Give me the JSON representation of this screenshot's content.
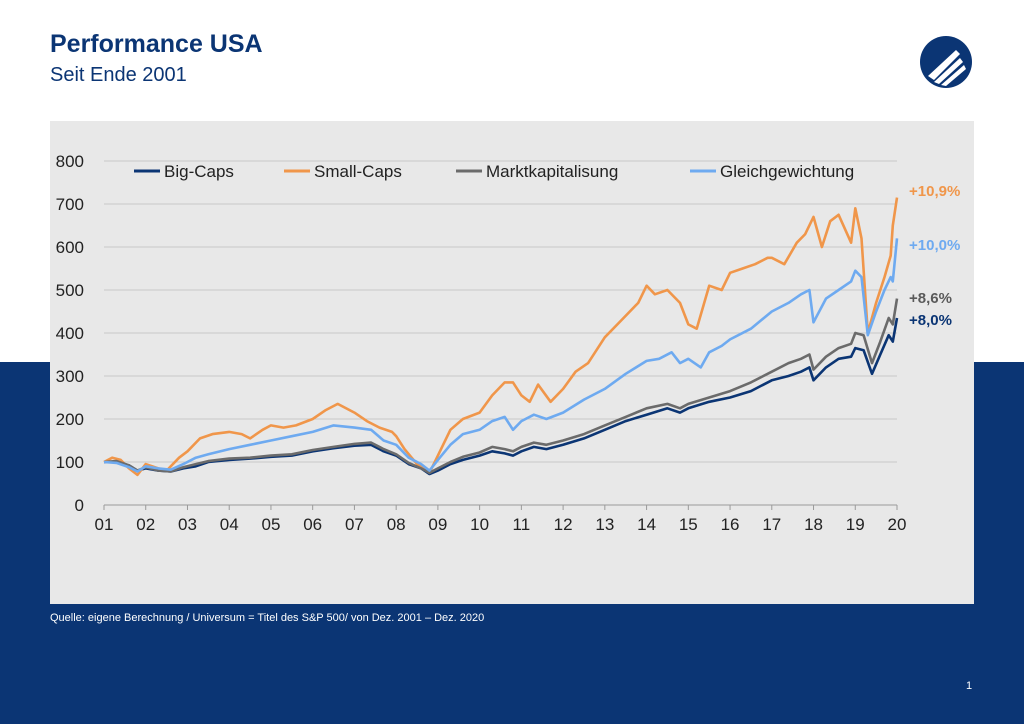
{
  "header": {
    "title": "Performance USA",
    "subtitle": "Seit Ende 2001"
  },
  "footer": {
    "source": "Quelle: eigene Berechnung  / Universum = Titel des S&P 500/ von Dez. 2001 – Dez. 2020",
    "page_number": "1"
  },
  "colors": {
    "brand": "#0b3574",
    "panel": "#e8e8e8"
  },
  "logo": {
    "icon": "brand-logo-icon"
  },
  "chart_data": {
    "type": "line",
    "title": "",
    "xlabel": "",
    "ylabel": "",
    "ylim": [
      0,
      800
    ],
    "xlim": [
      2001,
      2020
    ],
    "grid": true,
    "legend_position": "top",
    "y_ticks": [
      "0",
      "100",
      "200",
      "300",
      "400",
      "500",
      "600",
      "700",
      "800"
    ],
    "x_ticks": [
      "01",
      "02",
      "03",
      "04",
      "05",
      "06",
      "07",
      "08",
      "09",
      "10",
      "11",
      "12",
      "13",
      "14",
      "15",
      "16",
      "17",
      "18",
      "19",
      "20"
    ],
    "series": [
      {
        "name": "Big-Caps",
        "color": "#0b3574",
        "end_label": "+8,0%",
        "points": [
          [
            2001,
            100
          ],
          [
            2001.3,
            100
          ],
          [
            2001.6,
            92
          ],
          [
            2001.8,
            80
          ],
          [
            2002,
            85
          ],
          [
            2002.3,
            80
          ],
          [
            2002.6,
            78
          ],
          [
            2002.9,
            85
          ],
          [
            2003.2,
            90
          ],
          [
            2003.5,
            100
          ],
          [
            2004,
            105
          ],
          [
            2004.5,
            108
          ],
          [
            2005,
            112
          ],
          [
            2005.5,
            115
          ],
          [
            2006,
            125
          ],
          [
            2006.5,
            132
          ],
          [
            2007,
            138
          ],
          [
            2007.4,
            140
          ],
          [
            2007.7,
            125
          ],
          [
            2008,
            115
          ],
          [
            2008.3,
            95
          ],
          [
            2008.6,
            85
          ],
          [
            2008.8,
            72
          ],
          [
            2009,
            80
          ],
          [
            2009.3,
            95
          ],
          [
            2009.6,
            105
          ],
          [
            2010,
            115
          ],
          [
            2010.3,
            125
          ],
          [
            2010.6,
            120
          ],
          [
            2010.8,
            115
          ],
          [
            2011,
            125
          ],
          [
            2011.3,
            135
          ],
          [
            2011.6,
            130
          ],
          [
            2012,
            140
          ],
          [
            2012.5,
            155
          ],
          [
            2013,
            175
          ],
          [
            2013.5,
            195
          ],
          [
            2014,
            210
          ],
          [
            2014.5,
            225
          ],
          [
            2014.8,
            215
          ],
          [
            2015,
            225
          ],
          [
            2015.5,
            240
          ],
          [
            2016,
            250
          ],
          [
            2016.5,
            265
          ],
          [
            2017,
            290
          ],
          [
            2017.4,
            300
          ],
          [
            2017.7,
            310
          ],
          [
            2017.9,
            320
          ],
          [
            2018,
            290
          ],
          [
            2018.3,
            320
          ],
          [
            2018.6,
            340
          ],
          [
            2018.9,
            345
          ],
          [
            2019,
            365
          ],
          [
            2019.2,
            360
          ],
          [
            2019.4,
            305
          ],
          [
            2019.6,
            350
          ],
          [
            2019.8,
            395
          ],
          [
            2019.9,
            380
          ],
          [
            2020,
            435
          ]
        ]
      },
      {
        "name": "Small-Caps",
        "color": "#f0964a",
        "end_label": "+10,9%",
        "points": [
          [
            2001,
            100
          ],
          [
            2001.2,
            110
          ],
          [
            2001.4,
            105
          ],
          [
            2001.6,
            85
          ],
          [
            2001.8,
            70
          ],
          [
            2002,
            95
          ],
          [
            2002.3,
            85
          ],
          [
            2002.5,
            80
          ],
          [
            2002.8,
            110
          ],
          [
            2003,
            125
          ],
          [
            2003.3,
            155
          ],
          [
            2003.6,
            165
          ],
          [
            2004,
            170
          ],
          [
            2004.3,
            165
          ],
          [
            2004.5,
            155
          ],
          [
            2004.8,
            175
          ],
          [
            2005,
            185
          ],
          [
            2005.3,
            180
          ],
          [
            2005.6,
            185
          ],
          [
            2006,
            200
          ],
          [
            2006.3,
            220
          ],
          [
            2006.6,
            235
          ],
          [
            2007,
            215
          ],
          [
            2007.3,
            195
          ],
          [
            2007.6,
            180
          ],
          [
            2007.9,
            170
          ],
          [
            2008,
            160
          ],
          [
            2008.2,
            130
          ],
          [
            2008.5,
            95
          ],
          [
            2008.8,
            75
          ],
          [
            2009,
            115
          ],
          [
            2009.3,
            175
          ],
          [
            2009.6,
            200
          ],
          [
            2010,
            215
          ],
          [
            2010.3,
            255
          ],
          [
            2010.6,
            285
          ],
          [
            2010.8,
            285
          ],
          [
            2011,
            255
          ],
          [
            2011.2,
            240
          ],
          [
            2011.4,
            280
          ],
          [
            2011.7,
            240
          ],
          [
            2012,
            270
          ],
          [
            2012.3,
            310
          ],
          [
            2012.6,
            330
          ],
          [
            2013,
            390
          ],
          [
            2013.4,
            430
          ],
          [
            2013.8,
            470
          ],
          [
            2014,
            510
          ],
          [
            2014.2,
            490
          ],
          [
            2014.5,
            500
          ],
          [
            2014.8,
            470
          ],
          [
            2015,
            420
          ],
          [
            2015.2,
            410
          ],
          [
            2015.5,
            510
          ],
          [
            2015.8,
            500
          ],
          [
            2016,
            540
          ],
          [
            2016.3,
            550
          ],
          [
            2016.6,
            560
          ],
          [
            2016.9,
            575
          ],
          [
            2017,
            575
          ],
          [
            2017.3,
            560
          ],
          [
            2017.6,
            610
          ],
          [
            2017.8,
            630
          ],
          [
            2018,
            670
          ],
          [
            2018.2,
            600
          ],
          [
            2018.4,
            660
          ],
          [
            2018.6,
            675
          ],
          [
            2018.9,
            610
          ],
          [
            2019,
            690
          ],
          [
            2019.15,
            620
          ],
          [
            2019.3,
            400
          ],
          [
            2019.5,
            470
          ],
          [
            2019.7,
            530
          ],
          [
            2019.85,
            580
          ],
          [
            2019.9,
            650
          ],
          [
            2020,
            715
          ]
        ]
      },
      {
        "name": "Marktkapitalisung",
        "color": "#6b6b6b",
        "end_label": "+8,6%",
        "points": [
          [
            2001,
            100
          ],
          [
            2001.3,
            102
          ],
          [
            2001.6,
            92
          ],
          [
            2001.8,
            80
          ],
          [
            2002,
            88
          ],
          [
            2002.3,
            80
          ],
          [
            2002.6,
            78
          ],
          [
            2002.9,
            88
          ],
          [
            2003.2,
            95
          ],
          [
            2003.5,
            102
          ],
          [
            2004,
            108
          ],
          [
            2004.5,
            110
          ],
          [
            2005,
            115
          ],
          [
            2005.5,
            118
          ],
          [
            2006,
            128
          ],
          [
            2006.5,
            135
          ],
          [
            2007,
            142
          ],
          [
            2007.4,
            145
          ],
          [
            2007.7,
            130
          ],
          [
            2008,
            118
          ],
          [
            2008.3,
            98
          ],
          [
            2008.6,
            85
          ],
          [
            2008.8,
            75
          ],
          [
            2009,
            85
          ],
          [
            2009.3,
            100
          ],
          [
            2009.6,
            112
          ],
          [
            2010,
            122
          ],
          [
            2010.3,
            135
          ],
          [
            2010.6,
            130
          ],
          [
            2010.8,
            125
          ],
          [
            2011,
            135
          ],
          [
            2011.3,
            145
          ],
          [
            2011.6,
            140
          ],
          [
            2012,
            150
          ],
          [
            2012.5,
            165
          ],
          [
            2013,
            185
          ],
          [
            2013.5,
            205
          ],
          [
            2014,
            225
          ],
          [
            2014.5,
            235
          ],
          [
            2014.8,
            225
          ],
          [
            2015,
            235
          ],
          [
            2015.5,
            250
          ],
          [
            2016,
            265
          ],
          [
            2016.5,
            285
          ],
          [
            2017,
            310
          ],
          [
            2017.4,
            330
          ],
          [
            2017.7,
            340
          ],
          [
            2017.9,
            350
          ],
          [
            2018,
            315
          ],
          [
            2018.3,
            345
          ],
          [
            2018.6,
            365
          ],
          [
            2018.9,
            375
          ],
          [
            2019,
            400
          ],
          [
            2019.2,
            395
          ],
          [
            2019.4,
            330
          ],
          [
            2019.6,
            380
          ],
          [
            2019.8,
            435
          ],
          [
            2019.9,
            420
          ],
          [
            2020,
            480
          ]
        ]
      },
      {
        "name": "Gleichgewichtung",
        "color": "#6eaaf0",
        "end_label": "+10,0%",
        "points": [
          [
            2001,
            100
          ],
          [
            2001.3,
            98
          ],
          [
            2001.6,
            88
          ],
          [
            2001.8,
            78
          ],
          [
            2002,
            90
          ],
          [
            2002.3,
            85
          ],
          [
            2002.6,
            82
          ],
          [
            2002.9,
            95
          ],
          [
            2003.2,
            110
          ],
          [
            2003.5,
            118
          ],
          [
            2004,
            130
          ],
          [
            2004.5,
            140
          ],
          [
            2005,
            150
          ],
          [
            2005.5,
            160
          ],
          [
            2006,
            170
          ],
          [
            2006.5,
            185
          ],
          [
            2007,
            180
          ],
          [
            2007.4,
            175
          ],
          [
            2007.7,
            150
          ],
          [
            2008,
            140
          ],
          [
            2008.3,
            110
          ],
          [
            2008.6,
            95
          ],
          [
            2008.8,
            80
          ],
          [
            2009,
            105
          ],
          [
            2009.3,
            140
          ],
          [
            2009.6,
            165
          ],
          [
            2010,
            175
          ],
          [
            2010.3,
            195
          ],
          [
            2010.6,
            205
          ],
          [
            2010.8,
            175
          ],
          [
            2011,
            195
          ],
          [
            2011.3,
            210
          ],
          [
            2011.6,
            200
          ],
          [
            2012,
            215
          ],
          [
            2012.5,
            245
          ],
          [
            2013,
            270
          ],
          [
            2013.5,
            305
          ],
          [
            2014,
            335
          ],
          [
            2014.3,
            340
          ],
          [
            2014.6,
            355
          ],
          [
            2014.8,
            330
          ],
          [
            2015,
            340
          ],
          [
            2015.3,
            320
          ],
          [
            2015.5,
            355
          ],
          [
            2015.8,
            370
          ],
          [
            2016,
            385
          ],
          [
            2016.5,
            410
          ],
          [
            2017,
            450
          ],
          [
            2017.4,
            470
          ],
          [
            2017.7,
            490
          ],
          [
            2017.9,
            500
          ],
          [
            2018,
            425
          ],
          [
            2018.3,
            480
          ],
          [
            2018.6,
            500
          ],
          [
            2018.9,
            520
          ],
          [
            2019,
            545
          ],
          [
            2019.15,
            530
          ],
          [
            2019.3,
            395
          ],
          [
            2019.5,
            450
          ],
          [
            2019.7,
            500
          ],
          [
            2019.85,
            530
          ],
          [
            2019.9,
            520
          ],
          [
            2020,
            620
          ]
        ]
      }
    ]
  }
}
